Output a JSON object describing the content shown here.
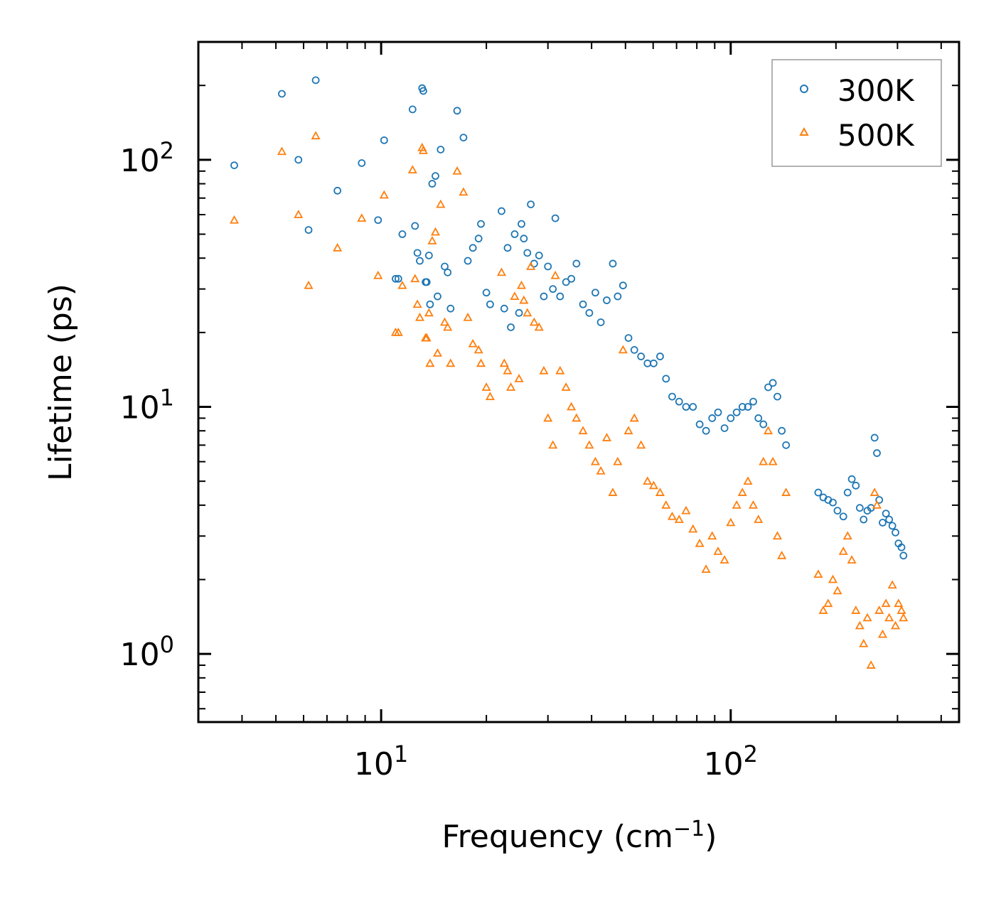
{
  "chart_data": {
    "type": "scatter",
    "title": "",
    "xlabel": "Frequency (cm",
    "xlabel_sup": "−1",
    "xlabel_close": ")",
    "ylabel": "Lifetime (ps)",
    "xscale": "log",
    "yscale": "log",
    "xlim": [
      3.0,
      450
    ],
    "ylim": [
      0.53,
      300
    ],
    "x_ticks": [
      {
        "base": "10",
        "exp": "1",
        "value": 10
      },
      {
        "base": "10",
        "exp": "2",
        "value": 100
      }
    ],
    "y_ticks": [
      {
        "base": "10",
        "exp": "0",
        "value": 1
      },
      {
        "base": "10",
        "exp": "1",
        "value": 10
      },
      {
        "base": "10",
        "exp": "2",
        "value": 100
      }
    ],
    "legend_position": "top-right",
    "series": [
      {
        "name": "300K",
        "marker": "circle",
        "color": "#1f77b4",
        "points": [
          [
            3.8,
            95
          ],
          [
            5.2,
            185
          ],
          [
            5.8,
            100
          ],
          [
            6.2,
            52
          ],
          [
            6.5,
            210
          ],
          [
            7.5,
            75
          ],
          [
            8.8,
            97
          ],
          [
            9.8,
            57
          ],
          [
            10.2,
            120
          ],
          [
            11.0,
            33
          ],
          [
            11.2,
            33
          ],
          [
            11.5,
            50
          ],
          [
            12.3,
            160
          ],
          [
            12.5,
            54
          ],
          [
            12.7,
            42
          ],
          [
            12.9,
            39
          ],
          [
            13.1,
            195
          ],
          [
            13.2,
            190
          ],
          [
            13.4,
            32
          ],
          [
            13.5,
            32
          ],
          [
            13.7,
            41
          ],
          [
            13.8,
            26
          ],
          [
            14.0,
            80
          ],
          [
            14.3,
            86
          ],
          [
            14.5,
            28
          ],
          [
            14.8,
            110
          ],
          [
            15.2,
            37
          ],
          [
            15.5,
            35
          ],
          [
            15.8,
            25
          ],
          [
            16.5,
            158
          ],
          [
            17.2,
            123
          ],
          [
            17.7,
            39
          ],
          [
            18.3,
            44
          ],
          [
            19.0,
            48
          ],
          [
            19.3,
            55
          ],
          [
            20.0,
            29
          ],
          [
            20.5,
            26
          ],
          [
            22.1,
            62
          ],
          [
            22.5,
            25
          ],
          [
            23.0,
            44
          ],
          [
            23.5,
            21
          ],
          [
            24.1,
            50
          ],
          [
            24.8,
            24
          ],
          [
            25.2,
            55
          ],
          [
            25.6,
            48
          ],
          [
            26.2,
            42
          ],
          [
            26.8,
            66
          ],
          [
            27.4,
            38
          ],
          [
            28.3,
            41
          ],
          [
            29.2,
            28
          ],
          [
            30.0,
            37
          ],
          [
            31.0,
            30
          ],
          [
            31.5,
            58
          ],
          [
            32.5,
            28
          ],
          [
            33.8,
            32
          ],
          [
            35.0,
            33
          ],
          [
            36.2,
            38
          ],
          [
            37.8,
            26
          ],
          [
            39.4,
            24
          ],
          [
            41.0,
            29
          ],
          [
            42.5,
            22
          ],
          [
            44.2,
            27
          ],
          [
            46.0,
            38
          ],
          [
            47.5,
            28
          ],
          [
            49.2,
            31
          ],
          [
            51.0,
            19
          ],
          [
            53.0,
            17
          ],
          [
            55.4,
            16
          ],
          [
            57.8,
            15
          ],
          [
            60.2,
            15
          ],
          [
            62.8,
            16
          ],
          [
            65.3,
            13
          ],
          [
            68.0,
            11
          ],
          [
            71.2,
            10.5
          ],
          [
            74.5,
            10
          ],
          [
            78.0,
            10
          ],
          [
            81.5,
            8.5
          ],
          [
            85.0,
            8
          ],
          [
            88.5,
            9
          ],
          [
            92.0,
            9.5
          ],
          [
            96.0,
            8.2
          ],
          [
            100.0,
            9
          ],
          [
            104.0,
            9.5
          ],
          [
            108.0,
            10
          ],
          [
            112.0,
            10
          ],
          [
            116.0,
            10.5
          ],
          [
            120.0,
            9
          ],
          [
            124.0,
            8.5
          ],
          [
            128.0,
            12
          ],
          [
            132.0,
            12.5
          ],
          [
            136.0,
            11
          ],
          [
            140.0,
            8
          ],
          [
            144.0,
            7
          ],
          [
            178.0,
            4.5
          ],
          [
            184.0,
            4.3
          ],
          [
            190.0,
            4.2
          ],
          [
            196.0,
            4.1
          ],
          [
            202.0,
            3.8
          ],
          [
            210.0,
            3.6
          ],
          [
            216.0,
            4.5
          ],
          [
            222.0,
            5.1
          ],
          [
            228.0,
            4.8
          ],
          [
            234.0,
            3.9
          ],
          [
            240.0,
            3.5
          ],
          [
            246.0,
            3.8
          ],
          [
            252.0,
            3.9
          ],
          [
            258.0,
            7.5
          ],
          [
            262.0,
            6.5
          ],
          [
            266.0,
            4.2
          ],
          [
            272.0,
            3.4
          ],
          [
            278.0,
            3.7
          ],
          [
            284.0,
            3.5
          ],
          [
            290.0,
            3.3
          ],
          [
            296.0,
            3.1
          ],
          [
            302.0,
            2.8
          ],
          [
            308.0,
            2.7
          ],
          [
            312.0,
            2.5
          ]
        ]
      },
      {
        "name": "500K",
        "marker": "triangle",
        "color": "#ff7f0e",
        "points": [
          [
            3.8,
            57
          ],
          [
            5.2,
            108
          ],
          [
            5.8,
            60
          ],
          [
            6.2,
            31
          ],
          [
            6.5,
            125
          ],
          [
            7.5,
            44
          ],
          [
            8.8,
            58
          ],
          [
            9.8,
            34
          ],
          [
            10.2,
            72
          ],
          [
            11.0,
            20
          ],
          [
            11.2,
            20
          ],
          [
            11.5,
            31
          ],
          [
            12.3,
            91
          ],
          [
            12.5,
            33
          ],
          [
            12.7,
            26
          ],
          [
            12.9,
            23
          ],
          [
            13.1,
            112
          ],
          [
            13.2,
            109
          ],
          [
            13.4,
            19
          ],
          [
            13.5,
            19
          ],
          [
            13.7,
            24
          ],
          [
            13.8,
            15
          ],
          [
            14.0,
            47
          ],
          [
            14.3,
            51
          ],
          [
            14.5,
            16.5
          ],
          [
            14.8,
            66
          ],
          [
            15.2,
            22
          ],
          [
            15.5,
            21
          ],
          [
            15.8,
            15
          ],
          [
            16.5,
            90
          ],
          [
            17.2,
            74
          ],
          [
            17.7,
            23
          ],
          [
            18.3,
            18
          ],
          [
            19.0,
            17
          ],
          [
            19.3,
            15
          ],
          [
            20.0,
            12
          ],
          [
            20.5,
            11
          ],
          [
            22.1,
            35
          ],
          [
            22.5,
            15
          ],
          [
            23.0,
            14
          ],
          [
            23.5,
            12
          ],
          [
            24.1,
            28
          ],
          [
            24.8,
            13
          ],
          [
            25.2,
            31
          ],
          [
            25.6,
            27
          ],
          [
            26.2,
            24
          ],
          [
            26.8,
            37
          ],
          [
            27.4,
            22
          ],
          [
            28.3,
            21
          ],
          [
            29.2,
            14
          ],
          [
            30.0,
            9
          ],
          [
            31.0,
            7
          ],
          [
            31.5,
            34
          ],
          [
            32.5,
            14
          ],
          [
            33.8,
            12
          ],
          [
            35.0,
            10
          ],
          [
            36.2,
            9
          ],
          [
            37.8,
            8
          ],
          [
            39.4,
            7
          ],
          [
            41.0,
            6
          ],
          [
            42.5,
            5.5
          ],
          [
            44.2,
            7.5
          ],
          [
            46.0,
            4.5
          ],
          [
            47.5,
            6
          ],
          [
            49.2,
            17
          ],
          [
            51.0,
            8
          ],
          [
            53.0,
            9
          ],
          [
            55.4,
            7
          ],
          [
            57.8,
            5
          ],
          [
            60.2,
            4.8
          ],
          [
            62.8,
            4.5
          ],
          [
            65.3,
            4
          ],
          [
            68.0,
            3.6
          ],
          [
            71.2,
            3.5
          ],
          [
            74.5,
            3.8
          ],
          [
            78.0,
            3.2
          ],
          [
            81.5,
            2.8
          ],
          [
            85.0,
            2.2
          ],
          [
            88.5,
            3
          ],
          [
            92.0,
            2.6
          ],
          [
            96.0,
            2.4
          ],
          [
            100.0,
            3.4
          ],
          [
            104.0,
            4
          ],
          [
            108.0,
            4.5
          ],
          [
            112.0,
            5
          ],
          [
            116.0,
            4
          ],
          [
            120.0,
            3.5
          ],
          [
            124.0,
            6
          ],
          [
            128.0,
            8
          ],
          [
            132.0,
            6
          ],
          [
            136.0,
            3
          ],
          [
            140.0,
            2.5
          ],
          [
            144.0,
            4.5
          ],
          [
            178.0,
            2.1
          ],
          [
            184.0,
            1.5
          ],
          [
            190.0,
            1.6
          ],
          [
            196.0,
            2.0
          ],
          [
            202.0,
            1.8
          ],
          [
            210.0,
            2.6
          ],
          [
            216.0,
            3
          ],
          [
            222.0,
            2.4
          ],
          [
            228.0,
            1.5
          ],
          [
            234.0,
            1.3
          ],
          [
            240.0,
            1.1
          ],
          [
            246.0,
            1.4
          ],
          [
            252.0,
            0.9
          ],
          [
            258.0,
            4.5
          ],
          [
            262.0,
            4
          ],
          [
            266.0,
            1.5
          ],
          [
            272.0,
            1.2
          ],
          [
            278.0,
            1.6
          ],
          [
            284.0,
            1.4
          ],
          [
            290.0,
            1.9
          ],
          [
            296.0,
            1.3
          ],
          [
            302.0,
            1.6
          ],
          [
            308.0,
            1.5
          ],
          [
            312.0,
            1.4
          ]
        ]
      }
    ]
  }
}
